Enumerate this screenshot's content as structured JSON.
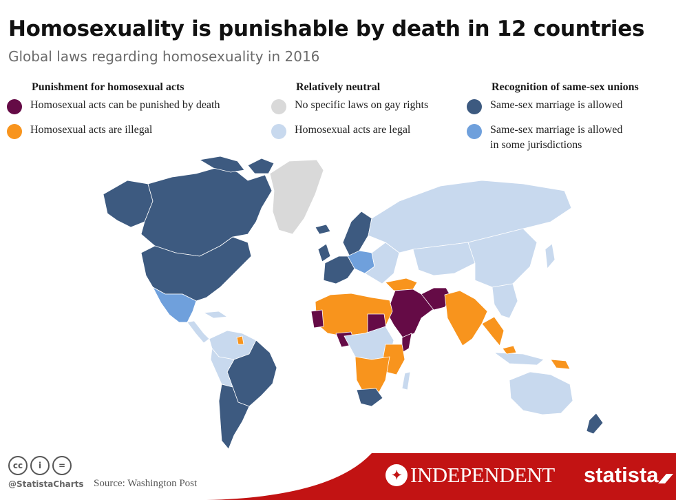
{
  "header": {
    "title": "Homosexuality is punishable by death in 12 countries",
    "subtitle": "Global laws regarding homosexuality in 2016"
  },
  "legend": {
    "groups": [
      {
        "heading": "Punishment for homosexual acts",
        "items": [
          {
            "label": "Homosexual acts can be punished by death",
            "color": "#650b46"
          },
          {
            "label": "Homosexual acts are illegal",
            "color": "#f8941d"
          }
        ]
      },
      {
        "heading": "Relatively neutral",
        "items": [
          {
            "label": "No specific laws on gay rights",
            "color": "#d9d9d9"
          },
          {
            "label": "Homosexual acts are legal",
            "color": "#c8d9ee"
          }
        ]
      },
      {
        "heading": "Recognition of same-sex unions",
        "items": [
          {
            "label": "Same-sex marriage is allowed",
            "color": "#3d5a80"
          },
          {
            "label": "Same-sex marriage is allowed",
            "label_line2": "in some jurisdictions",
            "color": "#6fa0dc"
          }
        ]
      }
    ]
  },
  "map": {
    "category_colors": {
      "death": "#650b46",
      "illegal": "#f8941d",
      "no_laws": "#d9d9d9",
      "legal": "#c8d9ee",
      "marriage": "#3d5a80",
      "marriage_some": "#6fa0dc"
    }
  },
  "footer": {
    "license_icons": [
      "cc-icon",
      "attribution-icon",
      "no-derivatives-icon"
    ],
    "license_glyphs": [
      "cc",
      "i",
      "="
    ],
    "handle": "@StatistaCharts",
    "source": "Source: Washington Post",
    "publisher": "INDEPENDENT",
    "brand": "statista",
    "bar_color": "#c21313"
  }
}
